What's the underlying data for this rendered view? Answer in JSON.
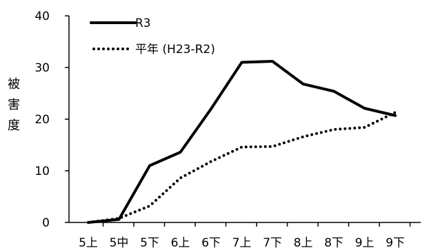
{
  "chart_data": {
    "type": "line",
    "title": "",
    "xlabel": "",
    "ylabel": "被害度",
    "ylim": [
      0,
      40
    ],
    "yticks": [
      0,
      10,
      20,
      30,
      40
    ],
    "grid": false,
    "legend_position": "top-left",
    "categories": [
      "5上",
      "5中",
      "5下",
      "6上",
      "6下",
      "7上",
      "7下",
      "8上",
      "8下",
      "9上",
      "9下"
    ],
    "series": [
      {
        "name": "R3",
        "style": "solid",
        "color": "#000000",
        "values": [
          0,
          0.6,
          11.0,
          13.6,
          22.0,
          31.0,
          31.2,
          26.8,
          25.4,
          22.1,
          20.7
        ]
      },
      {
        "name": "平年 (H23-R2)",
        "style": "dotted",
        "color": "#000000",
        "values": [
          0,
          0.8,
          3.2,
          8.6,
          11.8,
          14.6,
          14.7,
          16.6,
          18.0,
          18.4,
          21.3
        ]
      }
    ]
  }
}
